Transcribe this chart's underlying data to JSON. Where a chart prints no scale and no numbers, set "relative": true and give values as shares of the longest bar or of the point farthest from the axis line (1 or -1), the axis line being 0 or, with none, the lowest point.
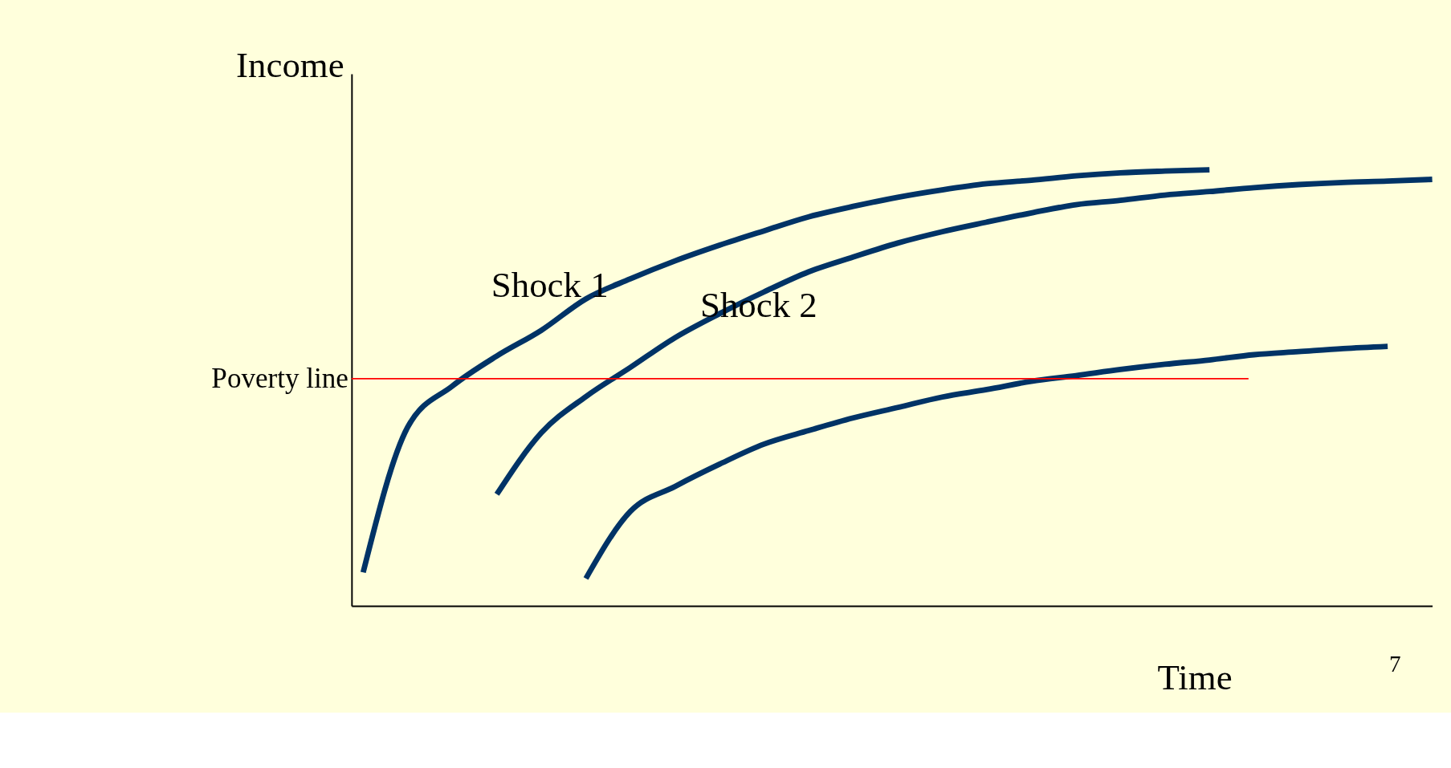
{
  "chart_data": {
    "type": "line",
    "relative": true,
    "xlabel": "Time",
    "ylabel": "Income",
    "legend": false,
    "line_style": "solid",
    "marker": "none",
    "categories": [
      null,
      null,
      null,
      null,
      null,
      null,
      null,
      null,
      null,
      null,
      null,
      null,
      null,
      null,
      null,
      null,
      null,
      null,
      null,
      null,
      null,
      null,
      null,
      null,
      null
    ],
    "series": [
      {
        "color": "#003366",
        "values": [
          0.077,
          0.41,
          0.504,
          0.573,
          0.632,
          0.704,
          0.75,
          0.791,
          0.827,
          0.86,
          0.892,
          0.916,
          0.937,
          0.954,
          0.968,
          0.976,
          0.986,
          0.993,
          0.997,
          1,
          null,
          null,
          null,
          null,
          null
        ]
      },
      {
        "color": "#003366",
        "values": [
          null,
          null,
          null,
          0.256,
          0.397,
          0.48,
          0.547,
          0.615,
          0.67,
          0.72,
          0.766,
          0.8,
          0.832,
          0.858,
          0.88,
          0.901,
          0.92,
          0.93,
          0.942,
          0.95,
          0.959,
          0.966,
          0.971,
          0.974,
          0.978
        ]
      },
      {
        "color": "#003366",
        "values": [
          null,
          null,
          null,
          null,
          null,
          0.063,
          0.217,
          0.274,
          0.325,
          0.371,
          0.402,
          0.431,
          0.455,
          0.479,
          0.496,
          0.515,
          0.528,
          0.542,
          0.554,
          0.564,
          0.576,
          0.583,
          0.59,
          0.595,
          null
        ]
      }
    ],
    "ref_lines": [
      {
        "axis": "y",
        "value": 0.521,
        "label": "Poverty line",
        "color": "#ff0000",
        "line_style": "solid"
      }
    ],
    "annotations": [
      "Shock 1",
      "Shock 2",
      "7"
    ]
  }
}
